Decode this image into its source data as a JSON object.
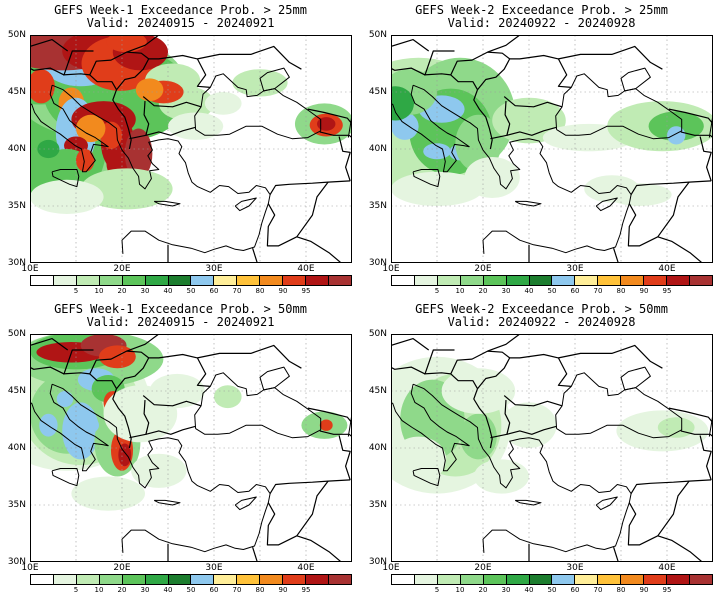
{
  "panels": [
    {
      "id": "w1-25",
      "title": "GEFS Week-1 Exceedance Prob. > 25mm",
      "valid": "Valid: 20240915 - 20240921"
    },
    {
      "id": "w2-25",
      "title": "GEFS Week-2 Exceedance Prob. > 25mm",
      "valid": "Valid: 20240922 - 20240928"
    },
    {
      "id": "w1-50",
      "title": "GEFS Week-1 Exceedance Prob. > 50mm",
      "valid": "Valid: 20240915 - 20240921"
    },
    {
      "id": "w2-50",
      "title": "GEFS Week-2 Exceedance Prob. > 50mm",
      "valid": "Valid: 20240922 - 20240928"
    }
  ],
  "lat_labels": [
    "50N",
    "45N",
    "40N",
    "35N",
    "30N"
  ],
  "lon_labels": [
    "10E",
    "20E",
    "30E",
    "40E"
  ],
  "colorbar": {
    "colors": [
      "#ffffff",
      "#e5f5e0",
      "#c0ebb4",
      "#8fd98a",
      "#5cc45a",
      "#2fa845",
      "#1c7d2e",
      "#8ec8ee",
      "#ffee99",
      "#ffc23a",
      "#f28a1e",
      "#e03d1a",
      "#b01515",
      "#a83232"
    ],
    "labels": [
      "5",
      "10",
      "20",
      "30",
      "40",
      "50",
      "60",
      "70",
      "80",
      "90",
      "95"
    ]
  }
}
